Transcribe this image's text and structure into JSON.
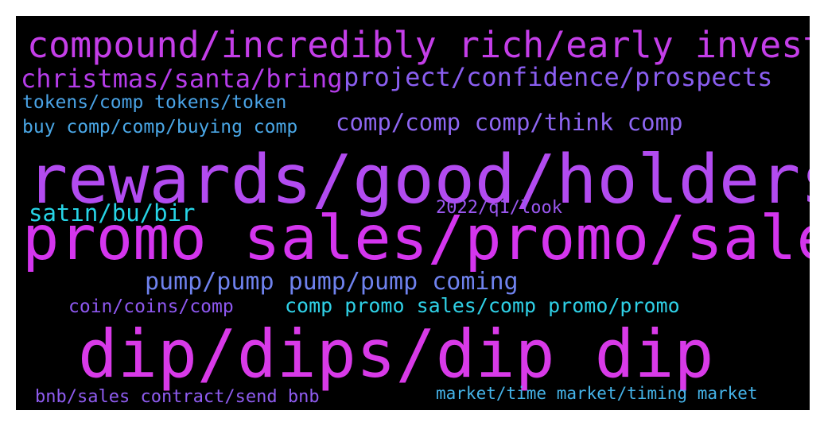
{
  "words": [
    {
      "text": "compound/incredibly rich/early investors",
      "color": "#c43ee8"
    },
    {
      "text": "christmas/santa/bring",
      "color": "#b53ce9"
    },
    {
      "text": "project/confidence/prospects",
      "color": "#8a5ef0"
    },
    {
      "text": "tokens/comp tokens/token",
      "color": "#4aa3e6"
    },
    {
      "text": "buy comp/comp/buying comp",
      "color": "#4aa7e6"
    },
    {
      "text": "comp/comp comp/think comp",
      "color": "#8e66f2"
    },
    {
      "text": "rewards/good/holders",
      "color": "#b24bf0"
    },
    {
      "text": "satın/bu/bir",
      "color": "#27d4e6"
    },
    {
      "text": "2022/q1/look",
      "color": "#9a57ef"
    },
    {
      "text": "promo sales/promo/sales",
      "color": "#d435ee"
    },
    {
      "text": "pump/pump pump/pump coming",
      "color": "#6f82ee"
    },
    {
      "text": "coin/coins/comp",
      "color": "#8e58f0"
    },
    {
      "text": "comp promo sales/comp promo/promo",
      "color": "#2fd0e6"
    },
    {
      "text": "dip/dips/dip dip",
      "color": "#d83ae8"
    },
    {
      "text": "bnb/sales contract/send bnb",
      "color": "#8f5cf0"
    },
    {
      "text": "market/time market/timing market",
      "color": "#45b3e8"
    }
  ]
}
